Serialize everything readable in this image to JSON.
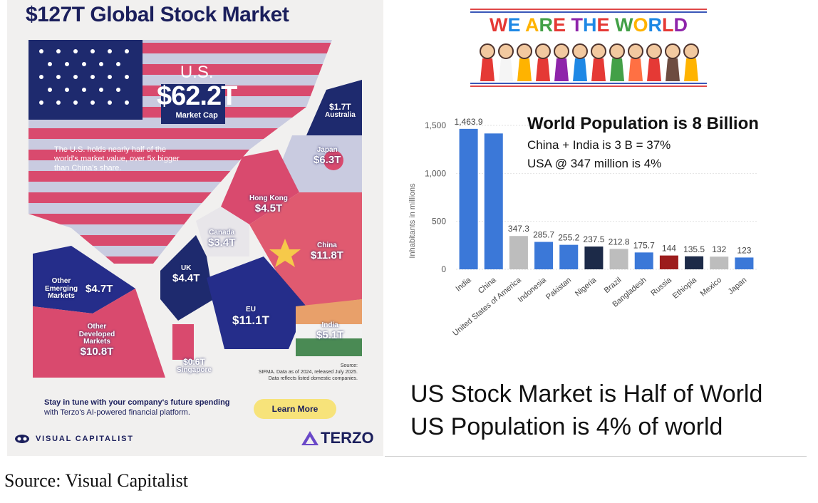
{
  "infographic": {
    "title": "$127T Global Stock Market",
    "us": {
      "name": "U.S.",
      "value": "$62.2T",
      "sub": "Market Cap"
    },
    "us_note": "The U.S. holds nearly half of the world's market value, over 5x bigger than China's share.",
    "regions": [
      {
        "name": "Australia",
        "value": "$1.7T"
      },
      {
        "name": "Japan",
        "value": "$6.3T"
      },
      {
        "name": "Hong Kong",
        "value": "$4.5T"
      },
      {
        "name": "China",
        "value": "$11.8T"
      },
      {
        "name": "Canada",
        "value": "$3.4T"
      },
      {
        "name": "UK",
        "value": "$4.4T"
      },
      {
        "name": "EU",
        "value": "$11.1T"
      },
      {
        "name": "India",
        "value": "$5.1T"
      },
      {
        "name": "Other Emerging Markets",
        "value": "$4.7T"
      },
      {
        "name": "Other Developed Markets",
        "value": "$10.8T"
      },
      {
        "name": "Singapore",
        "value": "$0.6T"
      }
    ],
    "source_label": "Source:",
    "source_text": "SIFMA. Data as of 2024, released July 2025.",
    "source_text2": "Data reflects listed domestic companies.",
    "cta_bold": "Stay in tune with your company's future spending",
    "cta_text": "with Terzo's AI-powered financial platform.",
    "cta_button": "Learn More",
    "brand_left": "VISUAL CAPITALIST",
    "brand_right": "TERZO",
    "colors": {
      "navy": "#1b1f5c",
      "pink": "#d94a6e",
      "lavender": "#c4c6dc",
      "yellow": "#f7e37a"
    }
  },
  "banner": {
    "text": "WE ARE THE WORLD",
    "letter_colors": [
      "#e53935",
      "#1e88e5",
      "#ffb300",
      "#43a047",
      "#e53935",
      "#8e24aa",
      "#1e88e5",
      "#e53935",
      "#43a047",
      "#ffb300",
      "#1e88e5",
      "#e53935",
      "#8e24aa",
      "#43a047",
      "#1e88e5",
      "#e53935"
    ]
  },
  "population": {
    "headline": "World Population is 8 Billion",
    "line1": "China + India is  3 B = 37%",
    "line2": "USA @ 347 million is 4%"
  },
  "chart_data": {
    "type": "bar",
    "ylabel": "Inhabitants in millions",
    "xlabel": "",
    "ylim": [
      0,
      1500
    ],
    "yticks": [
      0,
      500,
      1000,
      1500
    ],
    "ytick_labels": [
      "0",
      "500",
      "1,000",
      "1,500"
    ],
    "categories": [
      "India",
      "China",
      "United States of America",
      "Indonesia",
      "Pakistan",
      "Nigeria",
      "Brazil",
      "Bangladesh",
      "Russia",
      "Ethiopia",
      "Mexico",
      "Japan"
    ],
    "values": [
      1463.9,
      1416,
      347.3,
      285.7,
      255.2,
      237.5,
      212.8,
      175.7,
      144,
      135.5,
      132,
      123
    ],
    "value_labels": [
      "1,463.9",
      "",
      "347.3",
      "285.7",
      "255.2",
      "237.5",
      "212.8",
      "175.7",
      "144",
      "135.5",
      "132",
      "123"
    ],
    "bar_colors": [
      "#3b78d8",
      "#3b78d8",
      "#bdbdbd",
      "#3b78d8",
      "#3b78d8",
      "#1c2a48",
      "#bdbdbd",
      "#3b78d8",
      "#9c1c1c",
      "#1c2a48",
      "#bdbdbd",
      "#3b78d8"
    ],
    "grid": "horizontal"
  },
  "summary": {
    "line1": "US Stock Market is Half of World",
    "line2": "US Population is 4% of world"
  },
  "page_source": "Source: Visual Capitalist"
}
